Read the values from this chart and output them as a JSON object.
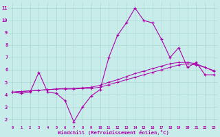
{
  "xlabel": "Windchill (Refroidissement éolien,°C)",
  "bg_color": "#c8ecea",
  "grid_color": "#aad8d4",
  "line_color": "#aa00aa",
  "tick_color": "#aa00aa",
  "x": [
    0,
    1,
    2,
    3,
    4,
    5,
    6,
    7,
    8,
    9,
    10,
    11,
    12,
    13,
    14,
    15,
    16,
    17,
    18,
    19,
    20,
    21,
    22,
    23
  ],
  "y_main": [
    4.2,
    4.1,
    4.2,
    5.8,
    4.2,
    4.1,
    3.5,
    1.8,
    3.0,
    3.9,
    4.4,
    7.0,
    8.8,
    9.8,
    11.0,
    10.0,
    9.8,
    8.5,
    7.0,
    7.8,
    6.2,
    6.6,
    5.6,
    5.6
  ],
  "y_trend1": [
    4.2,
    4.25,
    4.3,
    4.35,
    4.4,
    4.45,
    4.45,
    4.45,
    4.5,
    4.5,
    4.6,
    4.8,
    5.0,
    5.2,
    5.4,
    5.6,
    5.8,
    6.0,
    6.2,
    6.4,
    6.5,
    6.4,
    6.2,
    5.9
  ],
  "y_trend2": [
    4.2,
    4.25,
    4.3,
    4.35,
    4.4,
    4.45,
    4.5,
    4.5,
    4.55,
    4.6,
    4.75,
    5.0,
    5.2,
    5.45,
    5.7,
    5.9,
    6.1,
    6.3,
    6.5,
    6.6,
    6.6,
    6.5,
    6.2,
    5.95
  ],
  "ylim": [
    1.5,
    11.5
  ],
  "yticks": [
    2,
    3,
    4,
    5,
    6,
    7,
    8,
    9,
    10,
    11
  ],
  "xticks": [
    0,
    1,
    2,
    3,
    4,
    5,
    6,
    7,
    8,
    9,
    10,
    11,
    12,
    13,
    14,
    15,
    16,
    17,
    18,
    19,
    20,
    21,
    22,
    23
  ],
  "figsize": [
    3.2,
    2.0
  ],
  "dpi": 100
}
